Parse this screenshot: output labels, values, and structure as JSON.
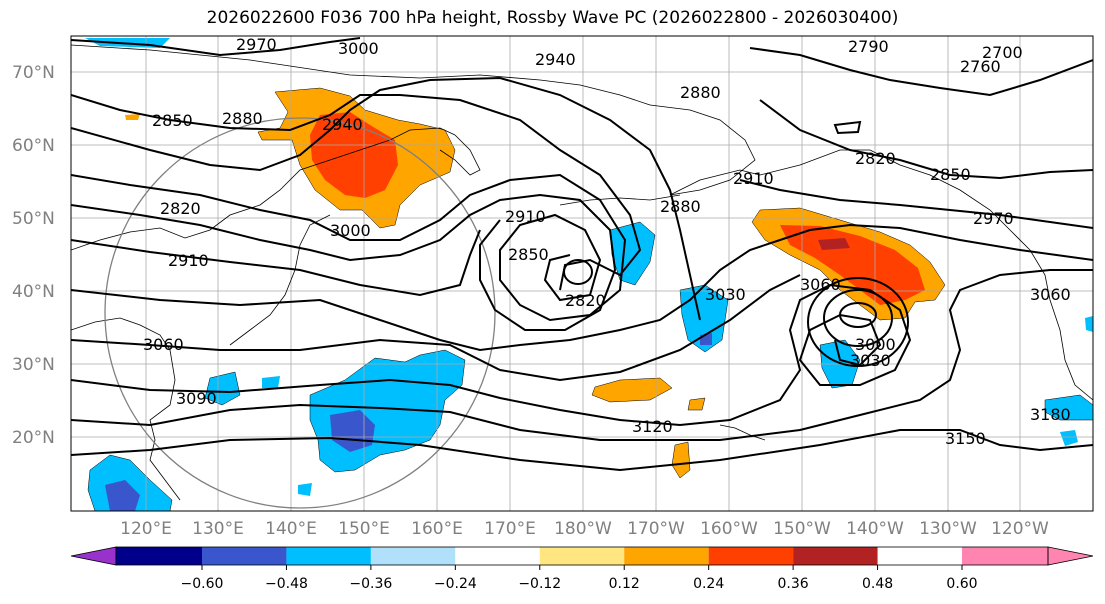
{
  "title": "2026022600 F036 700 hPa height, Rossby Wave PC (2026022800 - 2026030400)",
  "lat_labels": [
    "70°N",
    "60°N",
    "50°N",
    "40°N",
    "30°N",
    "20°N"
  ],
  "lon_labels": [
    "120°E",
    "130°E",
    "140°E",
    "150°E",
    "160°E",
    "170°E",
    "180°W",
    "170°W",
    "160°W",
    "150°W",
    "140°W",
    "130°W",
    "120°W"
  ],
  "colorbar": {
    "ticks": [
      "−0.60",
      "−0.48",
      "−0.36",
      "−0.24",
      "−0.12",
      "0.12",
      "0.24",
      "0.36",
      "0.48",
      "0.60"
    ],
    "colors": [
      "#9932cc",
      "#00008b",
      "#3a56cc",
      "#00bfff",
      "#b0e0fa",
      "#ffffff",
      "#ffe680",
      "#ffa500",
      "#ff4000",
      "#b22222",
      "#ff85b0"
    ]
  },
  "contour_labels": [
    "2970",
    "3000",
    "2940",
    "2790",
    "2700",
    "2760",
    "2880",
    "2850",
    "2880",
    "2940",
    "2820",
    "2850",
    "2910",
    "2820",
    "2970",
    "2910",
    "3000",
    "2910",
    "2880",
    "2850",
    "2820",
    "3030",
    "3060",
    "3060",
    "3000",
    "3030",
    "3060",
    "3090",
    "3120",
    "3150",
    "3180"
  ]
}
